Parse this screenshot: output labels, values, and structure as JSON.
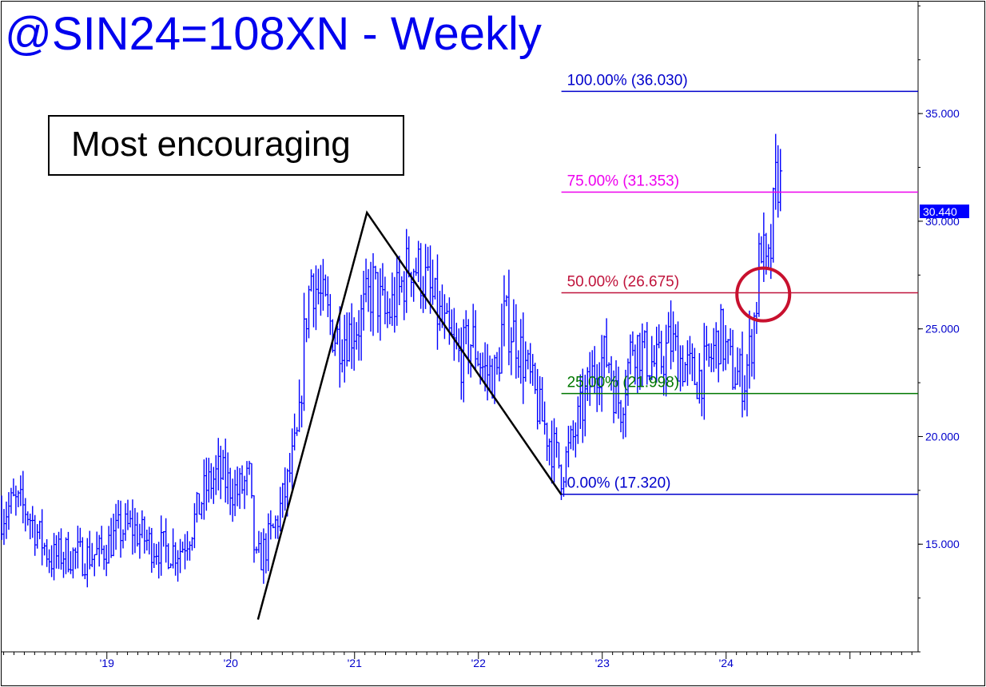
{
  "chart_data": {
    "type": "bar",
    "title": "@SIN24=108XN - Weekly",
    "annotation_box": "Most encouraging",
    "last_price_label": "30.440",
    "last_price": 30.44,
    "ylim": [
      10.0,
      40.2
    ],
    "y_ticks": [
      {
        "value": 15.0,
        "label": "15.000"
      },
      {
        "value": 20.0,
        "label": "20.000"
      },
      {
        "value": 25.0,
        "label": "25.000"
      },
      {
        "value": 30.0,
        "label": "30.000"
      },
      {
        "value": 35.0,
        "label": "35.000"
      }
    ],
    "x_range": [
      2018.15,
      2025.55
    ],
    "x_ticks": [
      {
        "value": 2019.0,
        "label": "'19"
      },
      {
        "value": 2020.0,
        "label": "'20"
      },
      {
        "value": 2021.0,
        "label": "'21"
      },
      {
        "value": 2022.0,
        "label": "'22"
      },
      {
        "value": 2023.0,
        "label": "'23"
      },
      {
        "value": 2024.0,
        "label": "'24"
      }
    ],
    "fib_levels": [
      {
        "label": "100.00% (36.030)",
        "value": 36.03,
        "color": "#0000cc"
      },
      {
        "label": "75.00% (31.353)",
        "value": 31.353,
        "color": "#ee00ee"
      },
      {
        "label": "50.00% (26.675)",
        "value": 26.675,
        "color": "#c0143c"
      },
      {
        "label": "25.00% (21.998)",
        "value": 21.998,
        "color": "#007700"
      },
      {
        "label": "0.00% (17.320)",
        "value": 17.32,
        "color": "#0000cc"
      }
    ],
    "fib_start_x": 2022.67,
    "pattern_points": [
      {
        "x": 2020.22,
        "y": 11.5
      },
      {
        "x": 2021.1,
        "y": 30.4
      },
      {
        "x": 2022.67,
        "y": 17.3
      }
    ],
    "circle_marker": {
      "x": 2024.3,
      "y": 26.6
    },
    "price_path": [
      [
        2018.15,
        16.4
      ],
      [
        2018.25,
        16.9
      ],
      [
        2018.35,
        16.6
      ],
      [
        2018.45,
        15.4
      ],
      [
        2018.55,
        14.3
      ],
      [
        2018.65,
        14.6
      ],
      [
        2018.8,
        14.4
      ],
      [
        2018.95,
        14.6
      ],
      [
        2019.1,
        15.6
      ],
      [
        2019.2,
        15.8
      ],
      [
        2019.35,
        15.0
      ],
      [
        2019.5,
        14.7
      ],
      [
        2019.6,
        14.8
      ],
      [
        2019.7,
        16.0
      ],
      [
        2019.8,
        17.6
      ],
      [
        2019.9,
        18.3
      ],
      [
        2020.0,
        17.7
      ],
      [
        2020.05,
        17.4
      ],
      [
        2020.15,
        18.0
      ],
      [
        2020.2,
        14.0
      ],
      [
        2020.25,
        14.5
      ],
      [
        2020.35,
        15.7
      ],
      [
        2020.45,
        17.6
      ],
      [
        2020.55,
        20.2
      ],
      [
        2020.6,
        25.3
      ],
      [
        2020.65,
        27.5
      ],
      [
        2020.75,
        26.0
      ],
      [
        2020.85,
        24.6
      ],
      [
        2020.95,
        24.8
      ],
      [
        2021.05,
        25.4
      ],
      [
        2021.15,
        27.0
      ],
      [
        2021.25,
        25.5
      ],
      [
        2021.35,
        26.5
      ],
      [
        2021.45,
        28.2
      ],
      [
        2021.55,
        27.5
      ],
      [
        2021.65,
        26.0
      ],
      [
        2021.75,
        24.6
      ],
      [
        2021.85,
        23.6
      ],
      [
        2021.95,
        24.5
      ],
      [
        2022.05,
        23.0
      ],
      [
        2022.15,
        22.8
      ],
      [
        2022.2,
        25.5
      ],
      [
        2022.3,
        24.7
      ],
      [
        2022.4,
        22.9
      ],
      [
        2022.5,
        21.0
      ],
      [
        2022.6,
        19.5
      ],
      [
        2022.67,
        18.4
      ],
      [
        2022.75,
        19.6
      ],
      [
        2022.85,
        21.5
      ],
      [
        2022.95,
        23.4
      ],
      [
        2023.05,
        23.7
      ],
      [
        2023.1,
        22.0
      ],
      [
        2023.15,
        21.5
      ],
      [
        2023.25,
        24.6
      ],
      [
        2023.35,
        23.7
      ],
      [
        2023.45,
        23.2
      ],
      [
        2023.55,
        24.4
      ],
      [
        2023.65,
        23.4
      ],
      [
        2023.75,
        22.7
      ],
      [
        2023.85,
        23.2
      ],
      [
        2023.95,
        24.8
      ],
      [
        2024.05,
        23.0
      ],
      [
        2024.15,
        22.7
      ],
      [
        2024.2,
        24.2
      ],
      [
        2024.25,
        26.6
      ],
      [
        2024.28,
        29.3
      ],
      [
        2024.32,
        27.4
      ],
      [
        2024.35,
        27.8
      ],
      [
        2024.4,
        31.6
      ],
      [
        2024.43,
        32.4
      ],
      [
        2024.45,
        30.44
      ]
    ]
  }
}
